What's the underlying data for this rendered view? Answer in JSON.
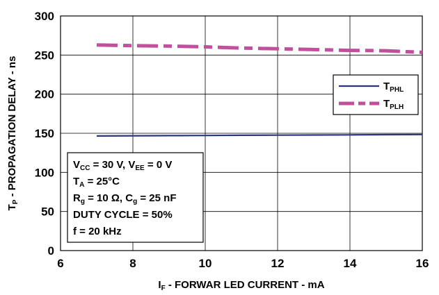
{
  "chart_data": {
    "type": "line",
    "x_axis": {
      "label_main": "I",
      "label_sub": "F",
      "label_rest": " - FORWAR LED CURRENT - mA",
      "min": 6,
      "max": 16,
      "ticks": [
        6,
        8,
        10,
        12,
        14,
        16
      ]
    },
    "y_axis": {
      "label_main": "T",
      "label_sub": "P",
      "label_rest": " - PROPAGATION DELAY - ns",
      "min": 0,
      "max": 300,
      "ticks": [
        0,
        50,
        100,
        150,
        200,
        250,
        300
      ]
    },
    "grid": {
      "horizontal": true,
      "vertical": true
    },
    "legend_position": "right",
    "series": [
      {
        "name_main": "T",
        "name_sub": "PHL",
        "style": "solid",
        "color": "#2a3580",
        "x": [
          7,
          8,
          9,
          10,
          11,
          12,
          13,
          14,
          15,
          16
        ],
        "y": [
          146.5,
          146.8,
          147.0,
          147.2,
          147.4,
          147.6,
          147.8,
          148.0,
          148.2,
          148.4
        ]
      },
      {
        "name_main": "T",
        "name_sub": "PLH",
        "style": "dash-dot",
        "color": "#c0509b",
        "x": [
          7,
          8,
          9,
          10,
          11,
          12,
          13,
          14,
          15,
          16
        ],
        "y": [
          263,
          262,
          261.5,
          260.5,
          259,
          258,
          257,
          256,
          255.5,
          253.5
        ]
      }
    ],
    "conditions": [
      {
        "parts": [
          {
            "t": "V"
          },
          {
            "t": "CC",
            "sub": true
          },
          {
            "t": " = 30 V, V"
          },
          {
            "t": "EE",
            "sub": true
          },
          {
            "t": " = 0 V"
          }
        ]
      },
      {
        "parts": [
          {
            "t": "T"
          },
          {
            "t": "A",
            "sub": true
          },
          {
            "t": " = 25°C"
          }
        ]
      },
      {
        "parts": [
          {
            "t": "R"
          },
          {
            "t": "g",
            "sub": true
          },
          {
            "t": " = 10 Ω, C"
          },
          {
            "t": "g",
            "sub": true
          },
          {
            "t": " = 25 nF"
          }
        ]
      },
      {
        "parts": [
          {
            "t": "DUTY CYCLE = 50%"
          }
        ]
      },
      {
        "parts": [
          {
            "t": "f = 20 kHz"
          }
        ]
      }
    ]
  }
}
